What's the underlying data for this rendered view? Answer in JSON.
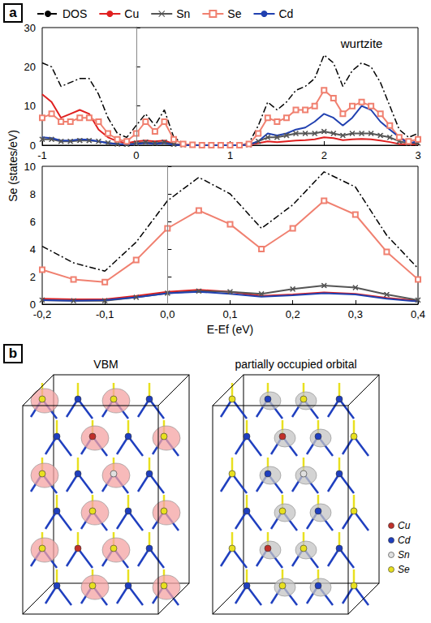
{
  "panel_labels": [
    "a",
    "b"
  ],
  "chart_data": [
    {
      "type": "line",
      "x": [
        -1,
        -0.9,
        -0.8,
        -0.7,
        -0.6,
        -0.5,
        -0.4,
        -0.3,
        -0.2,
        -0.1,
        0,
        0.1,
        0.2,
        0.3,
        0.4,
        0.5,
        0.6,
        0.7,
        0.8,
        0.9,
        1,
        1.1,
        1.2,
        1.3,
        1.4,
        1.5,
        1.6,
        1.7,
        1.8,
        1.9,
        2,
        2.1,
        2.2,
        2.3,
        2.4,
        2.5,
        2.6,
        2.7,
        2.8,
        2.9,
        3
      ],
      "series": [
        {
          "name": "DOS",
          "color": "#000000",
          "line_style": "dashdot",
          "marker": "none",
          "values": [
            21,
            20,
            15,
            16,
            17,
            17,
            13,
            7,
            3,
            2,
            5,
            8,
            5,
            9,
            2,
            0.5,
            0.1,
            0,
            0,
            0,
            0,
            0,
            0.5,
            5,
            11,
            9,
            11,
            14,
            15,
            17,
            23,
            21,
            15,
            19,
            21,
            20,
            16,
            10,
            4,
            2,
            3
          ]
        },
        {
          "name": "Cu",
          "color": "#e02020",
          "line_style": "solid",
          "marker": "none",
          "values": [
            13,
            11,
            7,
            8,
            9,
            8,
            4,
            2,
            1,
            0.5,
            1,
            1.2,
            1,
            1.2,
            0.3,
            0.1,
            0,
            0,
            0,
            0,
            0,
            0,
            0.1,
            0.5,
            1,
            0.8,
            1,
            1.2,
            1.3,
            1.5,
            2,
            1.8,
            1.3,
            1.5,
            1.6,
            1.5,
            1.2,
            0.8,
            0.3,
            0.2,
            0.2
          ]
        },
        {
          "name": "Sn",
          "color": "#555555",
          "line_style": "solid",
          "marker": "x",
          "values": [
            1.5,
            1.5,
            1,
            1,
            1.2,
            1.2,
            1,
            0.6,
            0.3,
            0.2,
            0.5,
            0.8,
            0.5,
            0.8,
            0.2,
            0.1,
            0,
            0,
            0,
            0,
            0,
            0,
            0.1,
            1,
            2,
            2,
            2.5,
            3,
            3,
            3,
            3.5,
            3,
            2.5,
            3,
            3,
            3,
            2.5,
            2,
            1,
            0.5,
            0.5
          ]
        },
        {
          "name": "Se",
          "color": "#f08070",
          "line_style": "solid",
          "marker": "square_open",
          "values": [
            7,
            8,
            6,
            6,
            7,
            7,
            6,
            3,
            1.5,
            1,
            3,
            6,
            3.5,
            6,
            1.5,
            0.3,
            0.1,
            0,
            0,
            0,
            0,
            0,
            0.3,
            3,
            7,
            6,
            7,
            9,
            9,
            10,
            14,
            12,
            8,
            10,
            11,
            10,
            8,
            5,
            2,
            1,
            1.5
          ]
        },
        {
          "name": "Cd",
          "color": "#2040b0",
          "line_style": "solid",
          "marker": "none",
          "values": [
            2,
            1.8,
            1.2,
            1.2,
            1.5,
            1.4,
            1,
            0.5,
            0.3,
            0.2,
            0.3,
            0.5,
            0.3,
            0.5,
            0.1,
            0,
            0,
            0,
            0,
            0,
            0,
            0,
            0.1,
            1,
            3,
            2.5,
            3,
            4,
            4.5,
            6,
            8,
            7,
            5,
            7,
            10,
            9,
            6,
            4,
            2,
            0.5,
            1
          ]
        }
      ],
      "xlim": [
        -1,
        3
      ],
      "xticks": [
        -1,
        0,
        1,
        2,
        3
      ],
      "ylim": [
        0,
        30
      ],
      "yticks": [
        0,
        10,
        20,
        30
      ],
      "grid": false,
      "legend": "top",
      "vline": 0,
      "annotations": [
        {
          "text": "wurtzite",
          "x": 2.4,
          "y": 26
        }
      ]
    },
    {
      "type": "line",
      "x": [
        -0.2,
        -0.15,
        -0.1,
        -0.05,
        0,
        0.05,
        0.1,
        0.15,
        0.2,
        0.25,
        0.3,
        0.35,
        0.4
      ],
      "series": [
        {
          "name": "DOS",
          "color": "#000000",
          "line_style": "dashdot",
          "marker": "none",
          "values": [
            4.2,
            3,
            2.4,
            4.5,
            7.5,
            9.2,
            8,
            5.5,
            7.2,
            9.6,
            8.5,
            5,
            2.6
          ]
        },
        {
          "name": "Cu",
          "color": "#e02020",
          "line_style": "solid",
          "marker": "none",
          "values": [
            0.4,
            0.35,
            0.35,
            0.6,
            0.9,
            1.05,
            0.9,
            0.6,
            0.7,
            0.85,
            0.75,
            0.45,
            0.25
          ]
        },
        {
          "name": "Sn",
          "color": "#555555",
          "line_style": "solid",
          "marker": "x",
          "values": [
            0.3,
            0.25,
            0.25,
            0.5,
            0.8,
            0.95,
            0.9,
            0.75,
            1.1,
            1.35,
            1.2,
            0.7,
            0.3
          ]
        },
        {
          "name": "Se",
          "color": "#f08070",
          "line_style": "solid",
          "marker": "square_open",
          "values": [
            2.5,
            1.8,
            1.6,
            3.2,
            5.5,
            6.8,
            5.8,
            4,
            5.5,
            7.5,
            6.5,
            3.8,
            1.8
          ]
        },
        {
          "name": "Cd",
          "color": "#2040b0",
          "line_style": "solid",
          "marker": "none",
          "values": [
            0.3,
            0.25,
            0.3,
            0.5,
            0.8,
            0.9,
            0.75,
            0.55,
            0.65,
            0.8,
            0.7,
            0.4,
            0.2
          ]
        }
      ],
      "xlim": [
        -0.2,
        0.4
      ],
      "xticks": [
        {
          "value": -0.2,
          "label": "-0,2"
        },
        {
          "value": -0.1,
          "label": "-0,1"
        },
        {
          "value": 0,
          "label": "0,0"
        },
        {
          "value": 0.1,
          "label": "0,1"
        },
        {
          "value": 0.2,
          "label": "0,2"
        },
        {
          "value": 0.3,
          "label": "0,3"
        },
        {
          "value": 0.4,
          "label": "0,4"
        }
      ],
      "ylim": [
        0,
        10
      ],
      "yticks": [
        0,
        2,
        4,
        6,
        8,
        10
      ],
      "grid": false,
      "vline": 0,
      "x_label": "E-Ef (eV)",
      "y_label": "Se (states/eV)"
    }
  ],
  "panel_b": {
    "images": [
      {
        "title": "VBM",
        "isosurface_color": "#f4a3a3"
      },
      {
        "title": "partially occupied orbital",
        "isosurface_color": "#c4c4c4"
      }
    ],
    "atom_legend": [
      {
        "label": "Cu",
        "color": "#c0302a"
      },
      {
        "label": "Cd",
        "color": "#1f3fbf"
      },
      {
        "label": "Sn",
        "color": "#e0e0e0"
      },
      {
        "label": "Se",
        "color": "#e8e020"
      }
    ]
  }
}
